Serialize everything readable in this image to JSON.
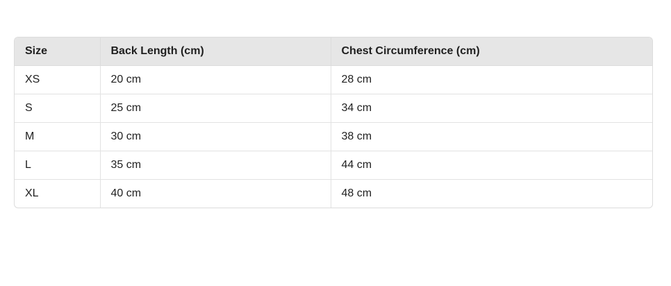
{
  "size_chart": {
    "headers": [
      "Size",
      "Back Length (cm)",
      "Chest Circumference (cm)"
    ],
    "rows": [
      [
        "XS",
        "20 cm",
        "28 cm"
      ],
      [
        "S",
        "25 cm",
        "34 cm"
      ],
      [
        "M",
        "30 cm",
        "38 cm"
      ],
      [
        "L",
        "35 cm",
        "44 cm"
      ],
      [
        "XL",
        "40 cm",
        "48 cm"
      ]
    ]
  },
  "colors": {
    "header_background": "#e6e6e6",
    "border": "#dcdcdc",
    "text": "#1f1f1f"
  }
}
